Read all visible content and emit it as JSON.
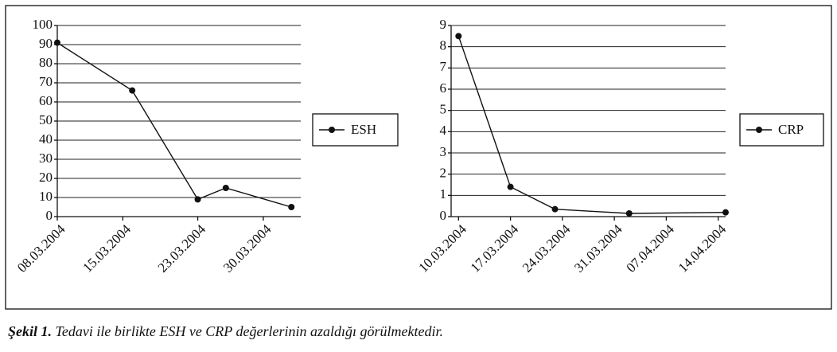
{
  "chart_data": [
    {
      "type": "line",
      "x": [
        "08.03.2004",
        "16.03.2004",
        "23.03.2004",
        "26.03.2004",
        "02.04.2004"
      ],
      "series": [
        {
          "name": "ESH",
          "color": "#111111",
          "values": [
            91,
            66,
            9,
            15,
            5
          ]
        }
      ],
      "xlim": [
        "08.03.2004",
        "03.04.2004"
      ],
      "xticks": [
        "08.03.2004",
        "15.03.2004",
        "23.03.2004",
        "30.03.2004"
      ],
      "ylim": [
        0,
        100
      ],
      "yticks": [
        0,
        10,
        20,
        30,
        40,
        50,
        60,
        70,
        80,
        90,
        100
      ],
      "grid": true,
      "legend": "right"
    },
    {
      "type": "line",
      "x": [
        "10.03.2004",
        "17.03.2004",
        "23.03.2004",
        "02.04.2004",
        "15.04.2004"
      ],
      "series": [
        {
          "name": "CRP",
          "color": "#111111",
          "values": [
            8.5,
            1.4,
            0.35,
            0.15,
            0.2
          ]
        }
      ],
      "xlim": [
        "09.03.2004",
        "15.04.2004"
      ],
      "xticks": [
        "10.03.2004",
        "17.03.2004",
        "24.03.2004",
        "31.03.2004",
        "07.04.2004",
        "14.04.2004"
      ],
      "ylim": [
        0,
        9
      ],
      "yticks": [
        0,
        1,
        2,
        3,
        4,
        5,
        6,
        7,
        8,
        9
      ],
      "grid": true,
      "legend": "right"
    }
  ],
  "caption": {
    "label": "Şekil 1.",
    "text": "Tedavi ile birlikte ESH ve CRP değerlerinin azaldığı görülmektedir."
  }
}
